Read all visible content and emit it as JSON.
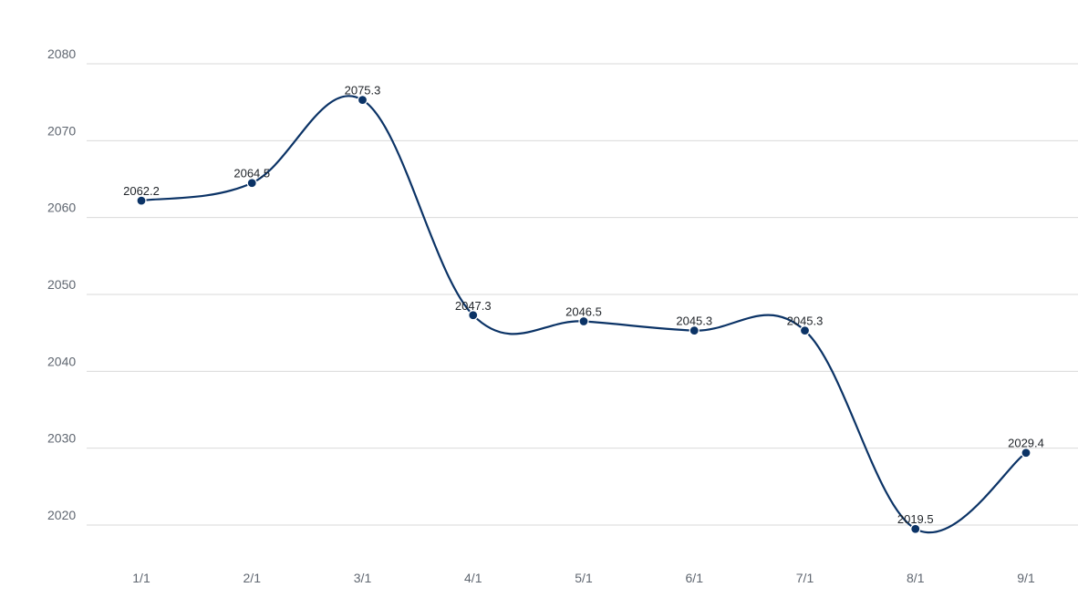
{
  "chart_data": {
    "type": "line",
    "title": "",
    "xlabel": "",
    "ylabel": "",
    "categories": [
      "1/1",
      "2/1",
      "3/1",
      "4/1",
      "5/1",
      "6/1",
      "7/1",
      "8/1",
      "9/1"
    ],
    "series": [
      {
        "values": [
          2062.2,
          2064.5,
          2075.3,
          2047.3,
          2046.5,
          2045.3,
          2045.3,
          2019.5,
          2029.4
        ]
      }
    ],
    "data_labels": [
      "2062.2",
      "2064.5",
      "2075.3",
      "2047.3",
      "2046.5",
      "2045.3",
      "2045.3",
      "2019.5",
      "2029.4"
    ],
    "ylim": [
      2020,
      2080
    ],
    "yticks": [
      2020,
      2030,
      2040,
      2050,
      2060,
      2070,
      2080
    ],
    "ytick_labels": [
      "2020",
      "2030",
      "2040",
      "2050",
      "2060",
      "2070",
      "2080"
    ],
    "grid": true,
    "legend": "none",
    "smooth": true,
    "colors": {
      "line": "#0b3366",
      "marker": "#0b3366",
      "grid": "#d9d9d9",
      "tick_text": "#5f6670",
      "label_text": "#1f2328"
    }
  }
}
